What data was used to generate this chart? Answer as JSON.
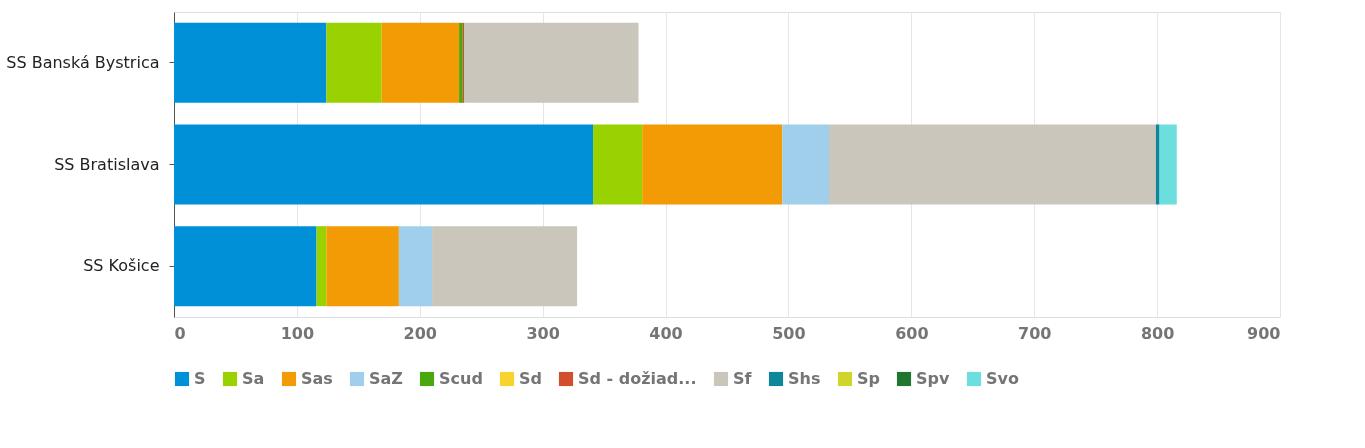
{
  "chart_data": {
    "type": "bar",
    "orientation": "horizontal",
    "stacked": true,
    "categories": [
      "SS Banská Bystrica",
      "SS Bratislava",
      "SS Košice"
    ],
    "series": [
      {
        "name": "S",
        "color": "#0090d8",
        "values": [
          124,
          341,
          116
        ]
      },
      {
        "name": "Sa",
        "color": "#99d200",
        "values": [
          45,
          40,
          8
        ]
      },
      {
        "name": "Sas",
        "color": "#f29b04",
        "values": [
          63,
          114,
          59
        ]
      },
      {
        "name": "SaZ",
        "color": "#a0cfec",
        "values": [
          null,
          38,
          27
        ]
      },
      {
        "name": "Scud",
        "color": "#4aa80f",
        "values": [
          3,
          null,
          null
        ]
      },
      {
        "name": "Sd",
        "color": "#f8d22f",
        "values": [
          null,
          null,
          null
        ]
      },
      {
        "name": "Sd - dožiad...",
        "color": "#d24f2d",
        "values": [
          1,
          null,
          null
        ]
      },
      {
        "name": "Sf",
        "color": "#cac6bb",
        "values": [
          142,
          266,
          118
        ]
      },
      {
        "name": "Shs",
        "color": "#0e879a",
        "values": [
          null,
          3,
          null
        ]
      },
      {
        "name": "Sp",
        "color": "#cfd52a",
        "values": [
          null,
          null,
          null
        ]
      },
      {
        "name": "Spv",
        "color": "#207530",
        "values": [
          null,
          null,
          null
        ]
      },
      {
        "name": "Svo",
        "color": "#6cdedd",
        "values": [
          null,
          14,
          null
        ]
      }
    ],
    "xlim": [
      0,
      900
    ],
    "xticks": [
      0,
      100,
      200,
      300,
      400,
      500,
      600,
      700,
      800,
      900
    ],
    "grid": "x",
    "legend": "bottom"
  }
}
